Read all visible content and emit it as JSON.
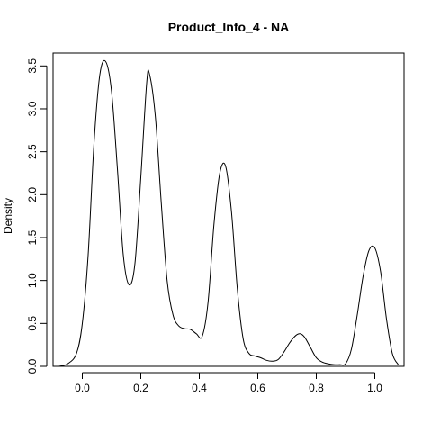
{
  "chart_data": {
    "type": "line",
    "title": "Product_Info_4 - NA",
    "xlabel": "",
    "ylabel": "Density",
    "xlim": [
      -0.1,
      1.1
    ],
    "ylim": [
      0,
      3.65
    ],
    "grid": false,
    "x_ticks": [
      0.0,
      0.2,
      0.4,
      0.6,
      0.8,
      1.0
    ],
    "x_tick_labels": [
      "0.0",
      "0.2",
      "0.4",
      "0.6",
      "0.8",
      "1.0"
    ],
    "y_ticks": [
      0.0,
      0.5,
      1.0,
      1.5,
      2.0,
      2.5,
      3.0,
      3.5
    ],
    "y_tick_labels": [
      "0.0",
      "0.5",
      "1.0",
      "1.5",
      "2.0",
      "2.5",
      "3.0",
      "3.5"
    ],
    "series": [
      {
        "color": "#000000",
        "x": [
          -0.08,
          -0.05,
          -0.02,
          0.0,
          0.02,
          0.04,
          0.06,
          0.08,
          0.1,
          0.12,
          0.14,
          0.16,
          0.18,
          0.2,
          0.22,
          0.23,
          0.25,
          0.27,
          0.29,
          0.31,
          0.33,
          0.35,
          0.37,
          0.39,
          0.41,
          0.43,
          0.45,
          0.47,
          0.49,
          0.51,
          0.53,
          0.55,
          0.57,
          0.59,
          0.61,
          0.63,
          0.65,
          0.67,
          0.69,
          0.71,
          0.73,
          0.745,
          0.76,
          0.78,
          0.8,
          0.82,
          0.84,
          0.86,
          0.88,
          0.9,
          0.92,
          0.94,
          0.96,
          0.98,
          1.0,
          1.02,
          1.04,
          1.06,
          1.08
        ],
        "y": [
          0.0,
          0.03,
          0.15,
          0.5,
          1.3,
          2.6,
          3.4,
          3.55,
          3.2,
          2.3,
          1.3,
          0.95,
          1.2,
          2.2,
          3.3,
          3.4,
          2.9,
          1.9,
          1.0,
          0.6,
          0.47,
          0.44,
          0.43,
          0.38,
          0.35,
          0.75,
          1.65,
          2.25,
          2.33,
          1.8,
          0.9,
          0.32,
          0.15,
          0.12,
          0.1,
          0.07,
          0.06,
          0.08,
          0.17,
          0.28,
          0.36,
          0.38,
          0.34,
          0.22,
          0.1,
          0.05,
          0.03,
          0.02,
          0.02,
          0.03,
          0.2,
          0.6,
          1.05,
          1.35,
          1.38,
          1.1,
          0.55,
          0.15,
          0.02
        ]
      }
    ]
  }
}
